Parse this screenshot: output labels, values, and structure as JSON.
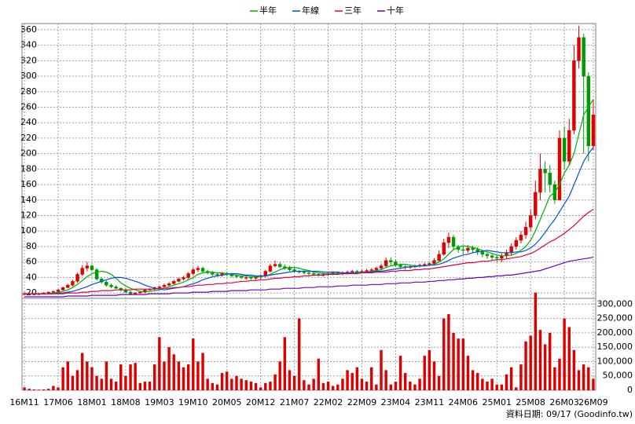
{
  "chart_data": {
    "type": "candlestick",
    "legend": "top",
    "grid": true,
    "footnote": "資料日期: 09/17 (Goodinfo.tw)",
    "categories": [
      "16M11",
      null,
      null,
      null,
      null,
      null,
      null,
      "17M06",
      null,
      null,
      null,
      null,
      null,
      null,
      "18M01",
      null,
      null,
      null,
      null,
      null,
      null,
      "18M08",
      null,
      null,
      null,
      null,
      null,
      null,
      "19M03",
      null,
      null,
      null,
      null,
      null,
      null,
      "19M10",
      null,
      null,
      null,
      null,
      null,
      null,
      "20M05",
      null,
      null,
      null,
      null,
      null,
      null,
      "20M12",
      null,
      null,
      null,
      null,
      null,
      null,
      "21M07",
      null,
      null,
      null,
      null,
      null,
      null,
      "22M02",
      null,
      null,
      null,
      null,
      null,
      null,
      "22M09",
      null,
      null,
      null,
      null,
      null,
      null,
      "23M04",
      null,
      null,
      null,
      null,
      null,
      null,
      "23M11",
      null,
      null,
      null,
      null,
      null,
      null,
      "24M06",
      null,
      null,
      null,
      null,
      null,
      null,
      "25M01",
      null,
      null,
      null,
      null,
      null,
      null,
      "25M08",
      null,
      null,
      null,
      null,
      null,
      null,
      "26M03",
      null,
      null,
      null,
      null,
      null,
      "26M09"
    ],
    "open": [
      19,
      19,
      19,
      18,
      19,
      20,
      21,
      22,
      24,
      27,
      30,
      35,
      44,
      52,
      55,
      50,
      38,
      34,
      30,
      28,
      26,
      24,
      21,
      19,
      20,
      21,
      24,
      25,
      27,
      28,
      30,
      32,
      35,
      38,
      40,
      45,
      50,
      52,
      48,
      46,
      44,
      43,
      45,
      44,
      42,
      41,
      40,
      40,
      39,
      41,
      42,
      48,
      55,
      57,
      54,
      52,
      50,
      48,
      47,
      46,
      45,
      44,
      43,
      44,
      45,
      46,
      45,
      46,
      47,
      48,
      47,
      48,
      49,
      50,
      52,
      55,
      62,
      60,
      56,
      54,
      53,
      54,
      55,
      56,
      57,
      58,
      62,
      70,
      85,
      92,
      80,
      76,
      75,
      78,
      76,
      73,
      70,
      68,
      66,
      65,
      68,
      72,
      80,
      88,
      95,
      105,
      120,
      150,
      180,
      175,
      160,
      140,
      220,
      190,
      230,
      320,
      350,
      300,
      210
    ],
    "high": [
      21,
      20,
      20,
      20,
      21,
      22,
      23,
      25,
      28,
      32,
      37,
      46,
      56,
      60,
      57,
      52,
      40,
      36,
      32,
      30,
      27,
      26,
      23,
      21,
      22,
      25,
      26,
      28,
      29,
      32,
      34,
      37,
      40,
      42,
      47,
      53,
      55,
      54,
      50,
      48,
      46,
      47,
      47,
      46,
      44,
      43,
      42,
      42,
      42,
      44,
      50,
      58,
      62,
      60,
      57,
      55,
      53,
      50,
      49,
      48,
      47,
      46,
      46,
      47,
      48,
      48,
      48,
      49,
      50,
      50,
      50,
      51,
      52,
      54,
      58,
      66,
      66,
      63,
      58,
      56,
      56,
      57,
      58,
      59,
      60,
      65,
      75,
      90,
      98,
      95,
      82,
      80,
      82,
      81,
      79,
      75,
      72,
      70,
      69,
      71,
      76,
      84,
      92,
      100,
      112,
      128,
      165,
      200,
      190,
      185,
      165,
      230,
      235,
      245,
      340,
      365,
      355,
      305,
      270
    ],
    "low": [
      17,
      17,
      17,
      17,
      18,
      19,
      20,
      21,
      23,
      26,
      28,
      33,
      42,
      48,
      48,
      36,
      32,
      28,
      26,
      25,
      22,
      20,
      17,
      18,
      19,
      20,
      23,
      24,
      26,
      27,
      29,
      31,
      34,
      36,
      38,
      43,
      47,
      46,
      44,
      42,
      41,
      41,
      42,
      40,
      39,
      38,
      37,
      37,
      37,
      38,
      40,
      46,
      53,
      52,
      50,
      48,
      46,
      45,
      44,
      43,
      42,
      41,
      41,
      42,
      43,
      43,
      43,
      44,
      45,
      45,
      45,
      46,
      47,
      48,
      50,
      53,
      55,
      54,
      51,
      50,
      51,
      52,
      53,
      54,
      55,
      56,
      60,
      68,
      78,
      76,
      72,
      70,
      72,
      72,
      69,
      66,
      64,
      62,
      60,
      60,
      64,
      68,
      76,
      84,
      90,
      100,
      115,
      140,
      150,
      150,
      135,
      140,
      180,
      185,
      225,
      310,
      200,
      190,
      205
    ],
    "close": [
      19,
      19,
      18,
      19,
      20,
      21,
      22,
      24,
      27,
      30,
      35,
      44,
      52,
      55,
      50,
      38,
      34,
      30,
      28,
      26,
      24,
      21,
      19,
      20,
      21,
      24,
      25,
      27,
      28,
      30,
      32,
      35,
      38,
      40,
      45,
      50,
      52,
      48,
      46,
      44,
      43,
      45,
      44,
      42,
      41,
      40,
      40,
      39,
      41,
      42,
      48,
      55,
      57,
      54,
      52,
      50,
      48,
      47,
      46,
      45,
      44,
      43,
      44,
      45,
      46,
      45,
      46,
      47,
      48,
      47,
      48,
      49,
      50,
      52,
      55,
      62,
      60,
      56,
      54,
      53,
      54,
      55,
      56,
      57,
      58,
      62,
      70,
      85,
      92,
      80,
      76,
      75,
      78,
      76,
      73,
      70,
      68,
      66,
      65,
      68,
      72,
      80,
      88,
      95,
      105,
      120,
      150,
      180,
      175,
      160,
      140,
      220,
      190,
      230,
      320,
      350,
      300,
      210,
      250
    ],
    "up_color": "#e00000",
    "down_color": "#009a00",
    "series": [
      {
        "name": "半年",
        "color": "#00b000",
        "values": [
          19,
          19,
          19,
          19,
          19,
          19,
          20,
          21,
          22,
          24,
          27,
          31,
          36,
          41,
          45,
          47,
          48,
          47,
          44,
          39,
          33,
          29,
          26,
          24,
          22,
          22,
          22,
          23,
          24,
          26,
          28,
          30,
          32,
          34,
          37,
          40,
          44,
          46,
          47,
          47,
          46,
          46,
          45,
          44,
          43,
          42,
          42,
          41,
          41,
          41,
          42,
          44,
          47,
          50,
          52,
          53,
          53,
          52,
          50,
          49,
          47,
          46,
          45,
          45,
          45,
          45,
          45,
          45,
          46,
          46,
          47,
          47,
          48,
          49,
          50,
          53,
          55,
          56,
          57,
          57,
          56,
          55,
          55,
          55,
          56,
          57,
          60,
          64,
          70,
          76,
          79,
          81,
          80,
          79,
          77,
          75,
          73,
          71,
          69,
          68,
          68,
          69,
          71,
          75,
          80,
          88,
          100,
          115,
          130,
          145,
          150,
          160,
          175,
          185,
          200,
          225,
          250,
          260,
          270
        ]
      },
      {
        "name": "年線",
        "color": "#0050e0",
        "values": [
          19,
          19,
          19,
          19,
          19,
          19,
          19,
          20,
          20,
          21,
          22,
          24,
          26,
          28,
          31,
          33,
          35,
          37,
          39,
          40,
          40,
          39,
          37,
          35,
          33,
          30,
          28,
          26,
          25,
          24,
          25,
          26,
          27,
          28,
          30,
          32,
          34,
          37,
          39,
          41,
          42,
          43,
          44,
          45,
          45,
          44,
          43,
          43,
          42,
          42,
          42,
          43,
          44,
          45,
          46,
          47,
          48,
          48,
          48,
          48,
          48,
          48,
          47,
          47,
          47,
          47,
          46,
          46,
          46,
          46,
          46,
          47,
          47,
          48,
          48,
          49,
          50,
          51,
          52,
          53,
          54,
          54,
          55,
          55,
          56,
          56,
          57,
          59,
          62,
          65,
          67,
          69,
          70,
          72,
          73,
          74,
          75,
          74,
          73,
          72,
          72,
          72,
          73,
          73,
          75,
          78,
          83,
          90,
          98,
          107,
          115,
          125,
          135,
          145,
          160,
          175,
          190,
          200,
          208
        ]
      },
      {
        "name": "三年",
        "color": "#e00040",
        "values": [
          19,
          19,
          19,
          19,
          19,
          19,
          19,
          19,
          19,
          20,
          20,
          20,
          21,
          21,
          22,
          22,
          23,
          23,
          23,
          24,
          24,
          24,
          24,
          25,
          25,
          25,
          25,
          25,
          26,
          26,
          26,
          27,
          27,
          28,
          28,
          29,
          30,
          30,
          31,
          31,
          32,
          32,
          33,
          33,
          34,
          35,
          35,
          36,
          36,
          37,
          37,
          38,
          39,
          39,
          40,
          40,
          41,
          41,
          42,
          42,
          43,
          43,
          43,
          44,
          44,
          44,
          45,
          45,
          45,
          45,
          46,
          46,
          46,
          47,
          47,
          47,
          48,
          48,
          49,
          49,
          49,
          50,
          50,
          51,
          51,
          52,
          53,
          54,
          55,
          56,
          57,
          58,
          59,
          59,
          60,
          61,
          61,
          62,
          63,
          63,
          64,
          65,
          66,
          67,
          69,
          71,
          74,
          78,
          82,
          86,
          89,
          93,
          97,
          102,
          107,
          113,
          119,
          124,
          128
        ]
      },
      {
        "name": "十年",
        "color": "#7000c0",
        "values": [
          15,
          15,
          15,
          15,
          15,
          15,
          15,
          15,
          15,
          16,
          16,
          16,
          16,
          16,
          17,
          17,
          17,
          17,
          17,
          17,
          18,
          18,
          18,
          18,
          18,
          18,
          19,
          19,
          19,
          19,
          19,
          20,
          20,
          20,
          20,
          21,
          21,
          21,
          21,
          22,
          22,
          22,
          22,
          23,
          23,
          23,
          23,
          24,
          24,
          24,
          24,
          25,
          25,
          25,
          26,
          26,
          26,
          26,
          27,
          27,
          27,
          28,
          28,
          28,
          28,
          29,
          29,
          29,
          30,
          30,
          30,
          30,
          31,
          31,
          31,
          32,
          32,
          32,
          33,
          33,
          33,
          34,
          34,
          34,
          35,
          35,
          36,
          36,
          37,
          37,
          38,
          38,
          39,
          39,
          40,
          40,
          41,
          41,
          42,
          42,
          43,
          43,
          44,
          45,
          46,
          47,
          48,
          49,
          51,
          53,
          55,
          57,
          59,
          61,
          62,
          63,
          64,
          65,
          66
        ]
      }
    ],
    "volume": {
      "color": "#dd0000",
      "values": [
        10000,
        5000,
        3000,
        2000,
        3000,
        5000,
        15000,
        10000,
        80000,
        100000,
        50000,
        70000,
        130000,
        100000,
        80000,
        50000,
        40000,
        100000,
        40000,
        30000,
        90000,
        50000,
        90000,
        95000,
        25000,
        30000,
        30000,
        90000,
        185000,
        100000,
        150000,
        125000,
        100000,
        80000,
        90000,
        180000,
        100000,
        130000,
        40000,
        25000,
        20000,
        60000,
        65000,
        40000,
        50000,
        40000,
        35000,
        30000,
        25000,
        10000,
        25000,
        30000,
        55000,
        100000,
        185000,
        70000,
        50000,
        250000,
        35000,
        20000,
        40000,
        110000,
        25000,
        30000,
        15000,
        20000,
        40000,
        70000,
        60000,
        80000,
        40000,
        30000,
        80000,
        20000,
        140000,
        70000,
        20000,
        30000,
        120000,
        60000,
        30000,
        20000,
        40000,
        120000,
        140000,
        100000,
        50000,
        250000,
        265000,
        200000,
        180000,
        180000,
        120000,
        70000,
        60000,
        40000,
        30000,
        40000,
        20000,
        20000,
        55000,
        80000,
        10000,
        90000,
        170000,
        190000,
        340000,
        210000,
        160000,
        200000,
        80000,
        110000,
        250000,
        220000,
        140000,
        70000,
        90000,
        80000,
        40000
      ]
    },
    "ylim": [
      13,
      368
    ],
    "yticks": [
      20,
      40,
      60,
      80,
      100,
      120,
      140,
      160,
      180,
      200,
      220,
      240,
      260,
      280,
      300,
      320,
      340,
      360
    ],
    "y2lim": [
      0,
      320000
    ],
    "y2ticks": [
      0,
      {
        "value": 50000,
        "label": "50,000"
      },
      {
        "value": 100000,
        "label": "100,000"
      },
      {
        "value": 150000,
        "label": "150,000"
      },
      {
        "value": 200000,
        "label": "200,000"
      },
      {
        "value": 250000,
        "label": "250,000"
      },
      {
        "value": 300000,
        "label": "300,000"
      }
    ]
  }
}
